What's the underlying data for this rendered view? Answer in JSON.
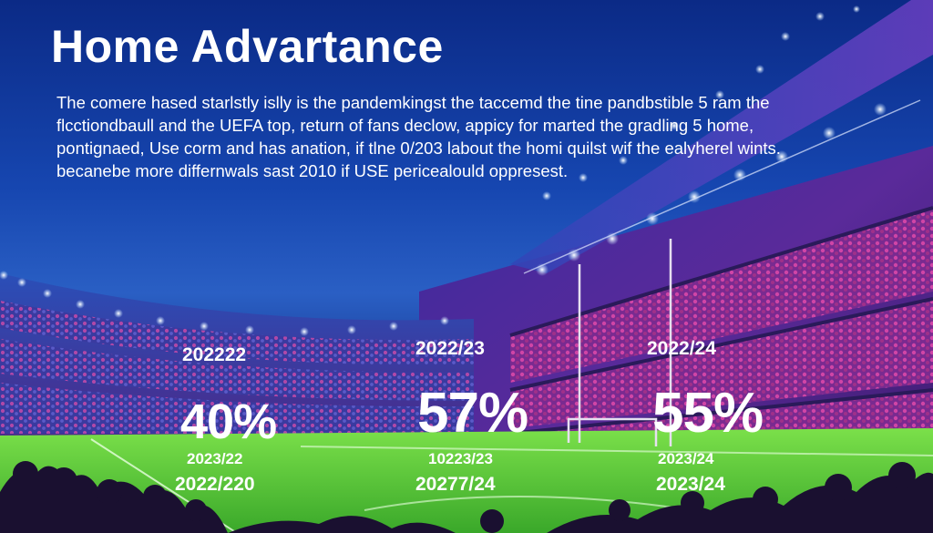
{
  "title": "Home Advartance",
  "intro_lines": [
    "The comere hased starlstly islly is the pandemkingst the taccemd the tine pandbstible 5 ram the",
    "flcctiondbaull and  the UEFA top, return of fans declow, appicy for marted the gradling 5 home,",
    "pontignaed, Use corm and has anation, if tlne 0/203 labout the homi quilst wif the ealyherel wints.",
    "becanebe more differnwals sast 2010 if USE pericealould oppresest."
  ],
  "stats": [
    {
      "season": "202222",
      "percent": "40%",
      "sub1": "2023/22",
      "sub2": "2022/220"
    },
    {
      "season": "2022/23",
      "percent": "57%",
      "sub1": "10223/23",
      "sub2": "20277/24"
    },
    {
      "season": "2022/24",
      "percent": "55%",
      "sub1": "2023/24",
      "sub2": "2023/24"
    }
  ],
  "colors": {
    "sky_top": "#0b2a86",
    "sky_mid": "#2a5fc4",
    "stand_purple": "#5a2a9a",
    "crowd_pink": "#c63a9c",
    "pitch_green": "#5fd03a",
    "text": "#ffffff"
  }
}
